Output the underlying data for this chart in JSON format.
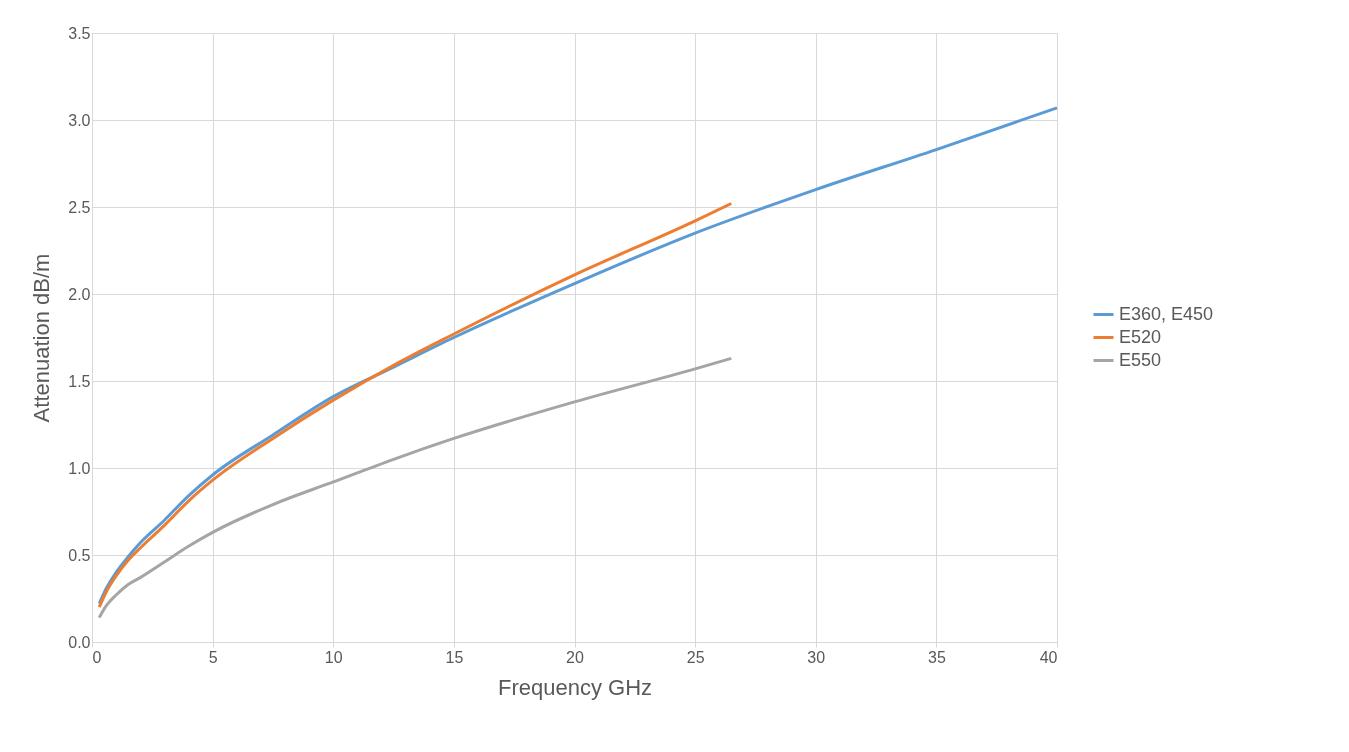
{
  "chart_data": {
    "type": "line",
    "xlabel": "Frequency GHz",
    "ylabel": "Attenuation dB/m",
    "xlim": [
      0,
      40
    ],
    "xticks": [
      0,
      5,
      10,
      15,
      20,
      25,
      30,
      35,
      40
    ],
    "ylim": [
      0,
      3.5
    ],
    "yticks": [
      {
        "value": 0,
        "label": "0.0"
      },
      {
        "value": 0.5,
        "label": "0.5"
      },
      {
        "value": 1,
        "label": "1.0"
      },
      {
        "value": 1.5,
        "label": "1.5"
      },
      {
        "value": 2,
        "label": "2.0"
      },
      {
        "value": 2.5,
        "label": "2.5"
      },
      {
        "value": 3,
        "label": "3.0"
      },
      {
        "value": 3.5,
        "label": "3.5"
      }
    ],
    "grid": true,
    "legend": "right",
    "marker": "none",
    "series": [
      {
        "name": "E360, E450",
        "color": "#5b9bd5",
        "x": [
          0.3,
          0.6,
          1,
          1.5,
          2,
          3,
          4,
          5,
          7.5,
          10,
          12.5,
          15,
          20,
          25,
          30,
          35,
          40
        ],
        "values": [
          0.22,
          0.31,
          0.4,
          0.49,
          0.57,
          0.7,
          0.84,
          0.96,
          1.19,
          1.41,
          1.58,
          1.75,
          2.06,
          2.35,
          2.6,
          2.83,
          3.07
        ]
      },
      {
        "name": "E520",
        "color": "#ed7d31",
        "x": [
          0.3,
          0.6,
          1,
          1.5,
          2,
          3,
          4,
          5,
          7.5,
          10,
          12.5,
          15,
          20,
          25,
          26.5
        ],
        "values": [
          0.2,
          0.29,
          0.38,
          0.47,
          0.54,
          0.67,
          0.81,
          0.93,
          1.17,
          1.39,
          1.59,
          1.77,
          2.11,
          2.42,
          2.52
        ]
      },
      {
        "name": "E550",
        "color": "#a5a5a5",
        "x": [
          0.3,
          0.6,
          1,
          1.5,
          2,
          3,
          4,
          5,
          7.5,
          10,
          12.5,
          15,
          20,
          25,
          26.5
        ],
        "values": [
          0.14,
          0.21,
          0.27,
          0.33,
          0.37,
          0.46,
          0.55,
          0.63,
          0.79,
          0.92,
          1.05,
          1.17,
          1.38,
          1.57,
          1.63
        ]
      }
    ]
  }
}
